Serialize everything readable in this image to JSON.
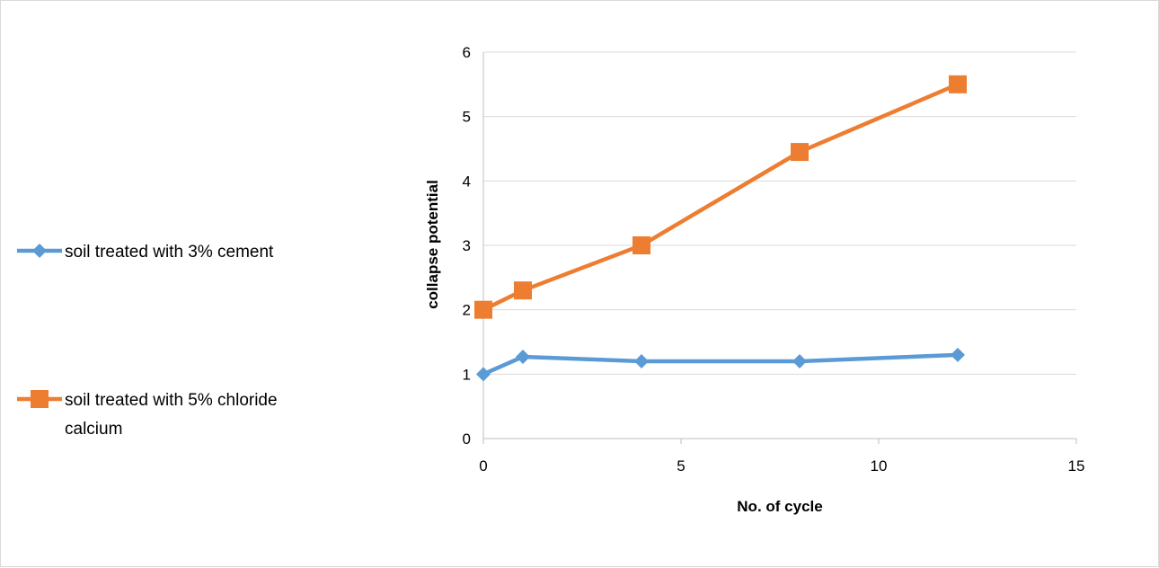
{
  "chart_data": {
    "type": "scatter",
    "title": "",
    "xlabel": "No. of cycle",
    "ylabel": "collapse potential",
    "xlim": [
      0,
      15
    ],
    "ylim": [
      0,
      6
    ],
    "xticks": [
      "0",
      "5",
      "10",
      "15"
    ],
    "yticks": [
      "0",
      "1",
      "2",
      "3",
      "4",
      "5",
      "6"
    ],
    "grid": "horizontal",
    "legend_position": "left",
    "series": [
      {
        "name": "soil treated with 3% cement",
        "legend_lines": [
          "soil treated with 3% cement"
        ],
        "color": "#5B9BD5",
        "marker": "diamond",
        "x": [
          0,
          1,
          4,
          8,
          12
        ],
        "y": [
          1.0,
          1.27,
          1.2,
          1.2,
          1.3
        ]
      },
      {
        "name": "soil treated with 5% chloride calcium",
        "legend_lines": [
          "soil treated with 5% chloride",
          "calcium"
        ],
        "color": "#ED7D31",
        "marker": "square",
        "x": [
          0,
          1,
          4,
          8,
          12
        ],
        "y": [
          2.0,
          2.3,
          3.0,
          4.45,
          5.5
        ]
      }
    ]
  }
}
